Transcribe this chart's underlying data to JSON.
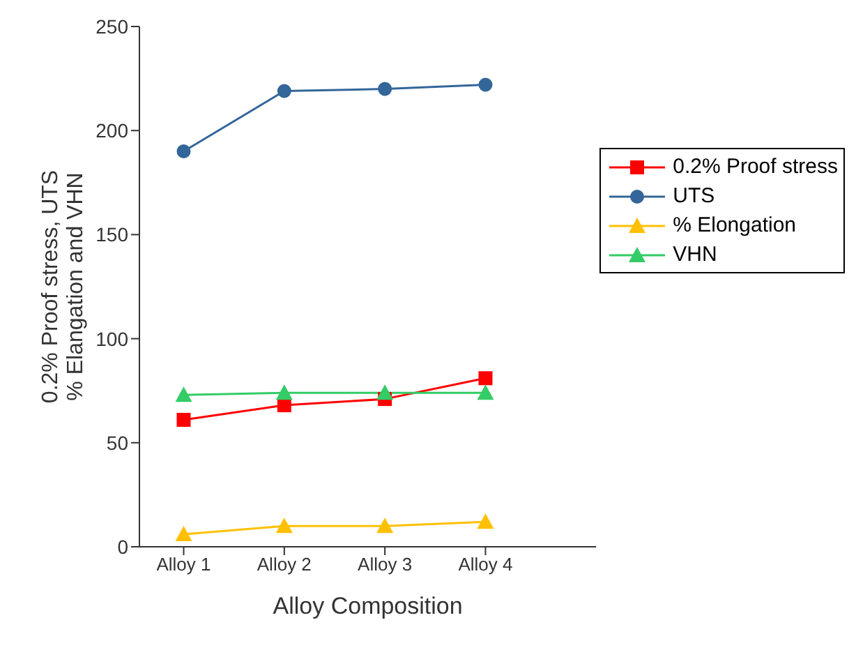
{
  "chart_data": {
    "type": "line",
    "xlabel": "Alloy Composition",
    "ylabel": "0.2% Proof stress, UTS\n% Elangation and VHN",
    "categories": [
      "Alloy 1",
      "Alloy 2",
      "Alloy 3",
      "Alloy 4"
    ],
    "series": [
      {
        "name": "0.2% Proof stress",
        "color": "#ff0000",
        "marker": "square",
        "values": [
          61,
          68,
          71,
          81
        ]
      },
      {
        "name": "UTS",
        "color": "#336699",
        "marker": "circle",
        "values": [
          190,
          219,
          220,
          222
        ]
      },
      {
        "name": "% Elongation",
        "color": "#ffc000",
        "marker": "triangle",
        "values": [
          6,
          10,
          10,
          12
        ]
      },
      {
        "name": "VHN",
        "color": "#33cc66",
        "marker": "triangle",
        "values": [
          73,
          74,
          74,
          74
        ]
      }
    ],
    "ylim": [
      0,
      250
    ],
    "yticks": [
      0,
      50,
      100,
      150,
      200,
      250
    ],
    "legend": "top right"
  }
}
